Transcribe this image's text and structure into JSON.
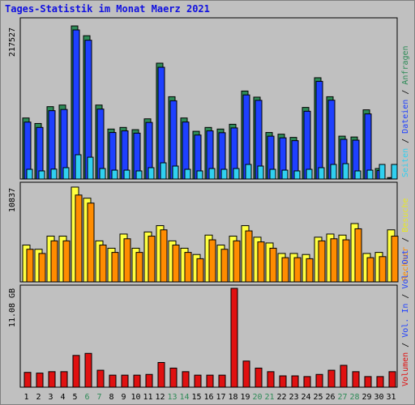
{
  "title": "Tages-Statistik im Monat Maerz 2021",
  "colors": {
    "background": "#c0c0c0",
    "title": "#1010e0",
    "anfragen": "#2e8b57",
    "dateien": "#1e40ff",
    "seiten": "#30d0f0",
    "besuche": "#ffff40",
    "rechner": "#ff8c00",
    "vol_out": "#1e40ff",
    "vol_in": "#1e40ff",
    "volumen": "#e01010",
    "weekend_label": "#2e8b57"
  },
  "right_legend": {
    "requests_panel": [
      {
        "text": "Anfragen",
        "color": "#2e8b57"
      },
      {
        "text": "Dateien",
        "color": "#1e40ff"
      },
      {
        "text": "Seiten",
        "color": "#30d0f0"
      }
    ],
    "visits_panel": [
      {
        "text": "Besuche",
        "color": "#e8e820"
      },
      {
        "text": "Rechner",
        "color": "#ff8c00"
      }
    ],
    "volume_panel": [
      {
        "text": "Vol. Out",
        "color": "#1e40ff"
      },
      {
        "text": "Vol. In",
        "color": "#1e40ff"
      },
      {
        "text": "Volumen",
        "color": "#e01010"
      }
    ]
  },
  "chart_data": [
    {
      "type": "bar",
      "panel": "requests",
      "ymax_label": "217527",
      "ylim": [
        0,
        217527
      ],
      "categories": [
        "1",
        "2",
        "3",
        "4",
        "5",
        "6",
        "7",
        "8",
        "9",
        "10",
        "11",
        "12",
        "13",
        "14",
        "15",
        "16",
        "17",
        "18",
        "19",
        "20",
        "21",
        "22",
        "23",
        "24",
        "25",
        "26",
        "27",
        "28",
        "29",
        "30",
        "31"
      ],
      "weekend_days": [
        "6",
        "7",
        "13",
        "14",
        "20",
        "21",
        "27",
        "28"
      ],
      "series": [
        {
          "name": "Anfragen",
          "values": [
            86700,
            78900,
            102800,
            105100,
            217500,
            203600,
            105100,
            71000,
            73300,
            70100,
            85500,
            164600,
            116900,
            86700,
            67800,
            73300,
            71000,
            77800,
            125000,
            116300,
            66100,
            63700,
            59100,
            101700,
            143900,
            116900,
            60900,
            59700,
            98300,
            14900,
            2000
          ]
        },
        {
          "name": "Dateien",
          "values": [
            80900,
            73300,
            97100,
            98800,
            211800,
            197200,
            99400,
            66100,
            68400,
            65200,
            80400,
            158800,
            111200,
            81000,
            62500,
            68400,
            65800,
            72600,
            119500,
            111800,
            60900,
            58500,
            54500,
            96300,
            138800,
            112000,
            56400,
            55200,
            92500,
            12000,
            1500
          ]
        },
        {
          "name": "Seiten",
          "values": [
            13800,
            11500,
            14100,
            16100,
            34500,
            31000,
            14900,
            12600,
            12600,
            11500,
            16100,
            23000,
            18400,
            13800,
            11500,
            14900,
            13800,
            14900,
            20700,
            18400,
            13800,
            12600,
            11500,
            13800,
            16100,
            20700,
            21800,
            11500,
            12600,
            20700,
            20700
          ]
        }
      ]
    },
    {
      "type": "bar",
      "panel": "visits",
      "ymax_label": "10837",
      "ylim": [
        0,
        10837
      ],
      "categories": [
        "1",
        "2",
        "3",
        "4",
        "5",
        "6",
        "7",
        "8",
        "9",
        "10",
        "11",
        "12",
        "13",
        "14",
        "15",
        "16",
        "17",
        "18",
        "19",
        "20",
        "21",
        "22",
        "23",
        "24",
        "25",
        "26",
        "27",
        "28",
        "29",
        "30",
        "31"
      ],
      "series": [
        {
          "name": "Besuche",
          "values": [
            4210,
            3730,
            5230,
            5230,
            10840,
            9570,
            4690,
            3850,
            5470,
            3850,
            5710,
            6430,
            4690,
            3850,
            3130,
            5350,
            4210,
            5230,
            6430,
            5110,
            4450,
            3250,
            3250,
            3130,
            5110,
            5470,
            5350,
            6670,
            3250,
            3370,
            5950
          ]
        },
        {
          "name": "Rechner",
          "values": [
            3730,
            3250,
            4690,
            4690,
            9930,
            9010,
            4210,
            3370,
            4930,
            3370,
            5230,
            5950,
            4210,
            3370,
            2650,
            4810,
            3730,
            4690,
            5830,
            4570,
            3850,
            2770,
            2770,
            2650,
            4690,
            4930,
            4810,
            6070,
            2770,
            2890,
            5230
          ]
        }
      ]
    },
    {
      "type": "bar",
      "panel": "volume",
      "ymax_label": "11.08 GB",
      "unit": "GB",
      "ylim": [
        0,
        11.08
      ],
      "categories": [
        "1",
        "2",
        "3",
        "4",
        "5",
        "6",
        "7",
        "8",
        "9",
        "10",
        "11",
        "12",
        "13",
        "14",
        "15",
        "16",
        "17",
        "18",
        "19",
        "20",
        "21",
        "22",
        "23",
        "24",
        "25",
        "26",
        "27",
        "28",
        "29",
        "30",
        "31"
      ],
      "series": [
        {
          "name": "Volumen",
          "values": [
            1.66,
            1.58,
            1.74,
            1.74,
            3.56,
            3.79,
            1.9,
            1.35,
            1.35,
            1.35,
            1.43,
            2.77,
            2.14,
            1.74,
            1.35,
            1.35,
            1.35,
            11.08,
            2.93,
            2.14,
            1.74,
            1.27,
            1.27,
            1.19,
            1.43,
            1.9,
            2.45,
            1.74,
            1.19,
            1.19,
            1.74
          ]
        }
      ]
    }
  ]
}
